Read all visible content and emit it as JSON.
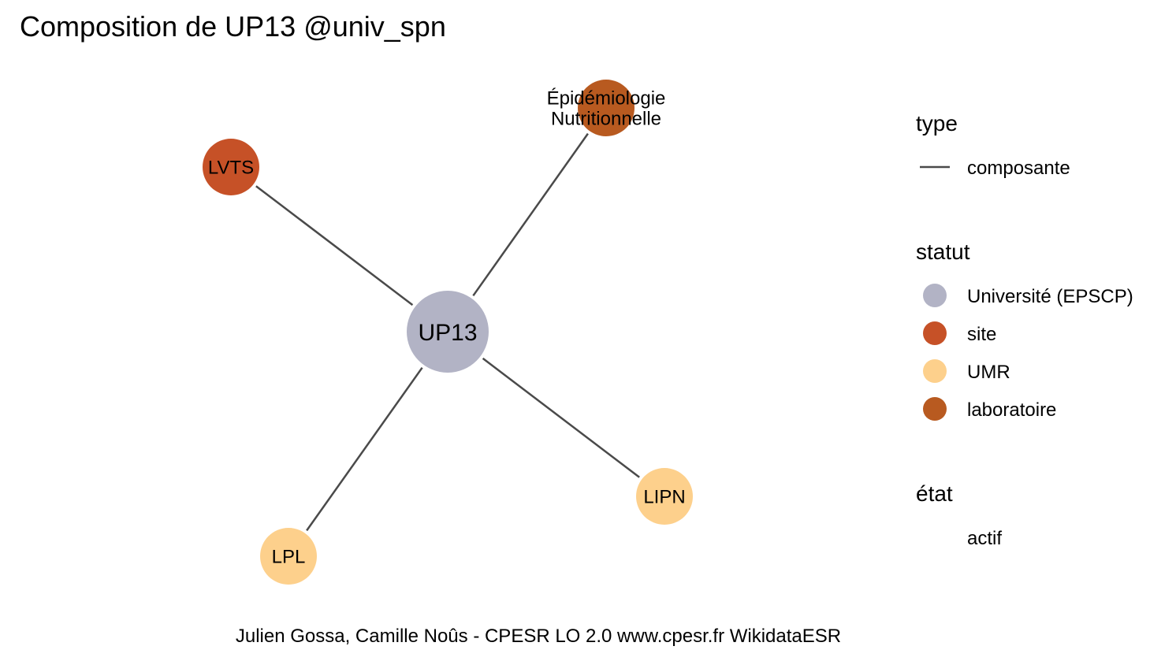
{
  "title": "Composition de UP13 @univ_spn",
  "caption": "Julien Gossa, Camille Noûs - CPESR LO 2.0 www.cpesr.fr WikidataESR",
  "colors": {
    "edge": "#4a4a4a",
    "universite": "#b2b3c5",
    "site": "#c65127",
    "umr": "#fdd08c",
    "laboratoire": "#b85a20"
  },
  "graph": {
    "nodes": [
      {
        "id": "up13",
        "label": "UP13",
        "statut": "universite"
      },
      {
        "id": "lvts",
        "label": "LVTS",
        "statut": "site"
      },
      {
        "id": "epi",
        "label": "Épidémiologie\nNutritionnelle",
        "statut": "laboratoire"
      },
      {
        "id": "lipn",
        "label": "LIPN",
        "statut": "umr"
      },
      {
        "id": "lpl",
        "label": "LPL",
        "statut": "umr"
      }
    ],
    "edges": [
      {
        "from": "up13",
        "to": "lvts",
        "type": "composante"
      },
      {
        "from": "up13",
        "to": "epi",
        "type": "composante"
      },
      {
        "from": "up13",
        "to": "lipn",
        "type": "composante"
      },
      {
        "from": "up13",
        "to": "lpl",
        "type": "composante"
      }
    ]
  },
  "legend": {
    "type": {
      "title": "type",
      "items": [
        {
          "label": "composante"
        }
      ]
    },
    "statut": {
      "title": "statut",
      "items": [
        {
          "label": "Université (EPSCP)",
          "key": "universite"
        },
        {
          "label": "site",
          "key": "site"
        },
        {
          "label": "UMR",
          "key": "umr"
        },
        {
          "label": "laboratoire",
          "key": "laboratoire"
        }
      ]
    },
    "etat": {
      "title": "état",
      "items": [
        {
          "label": "actif"
        }
      ]
    }
  }
}
